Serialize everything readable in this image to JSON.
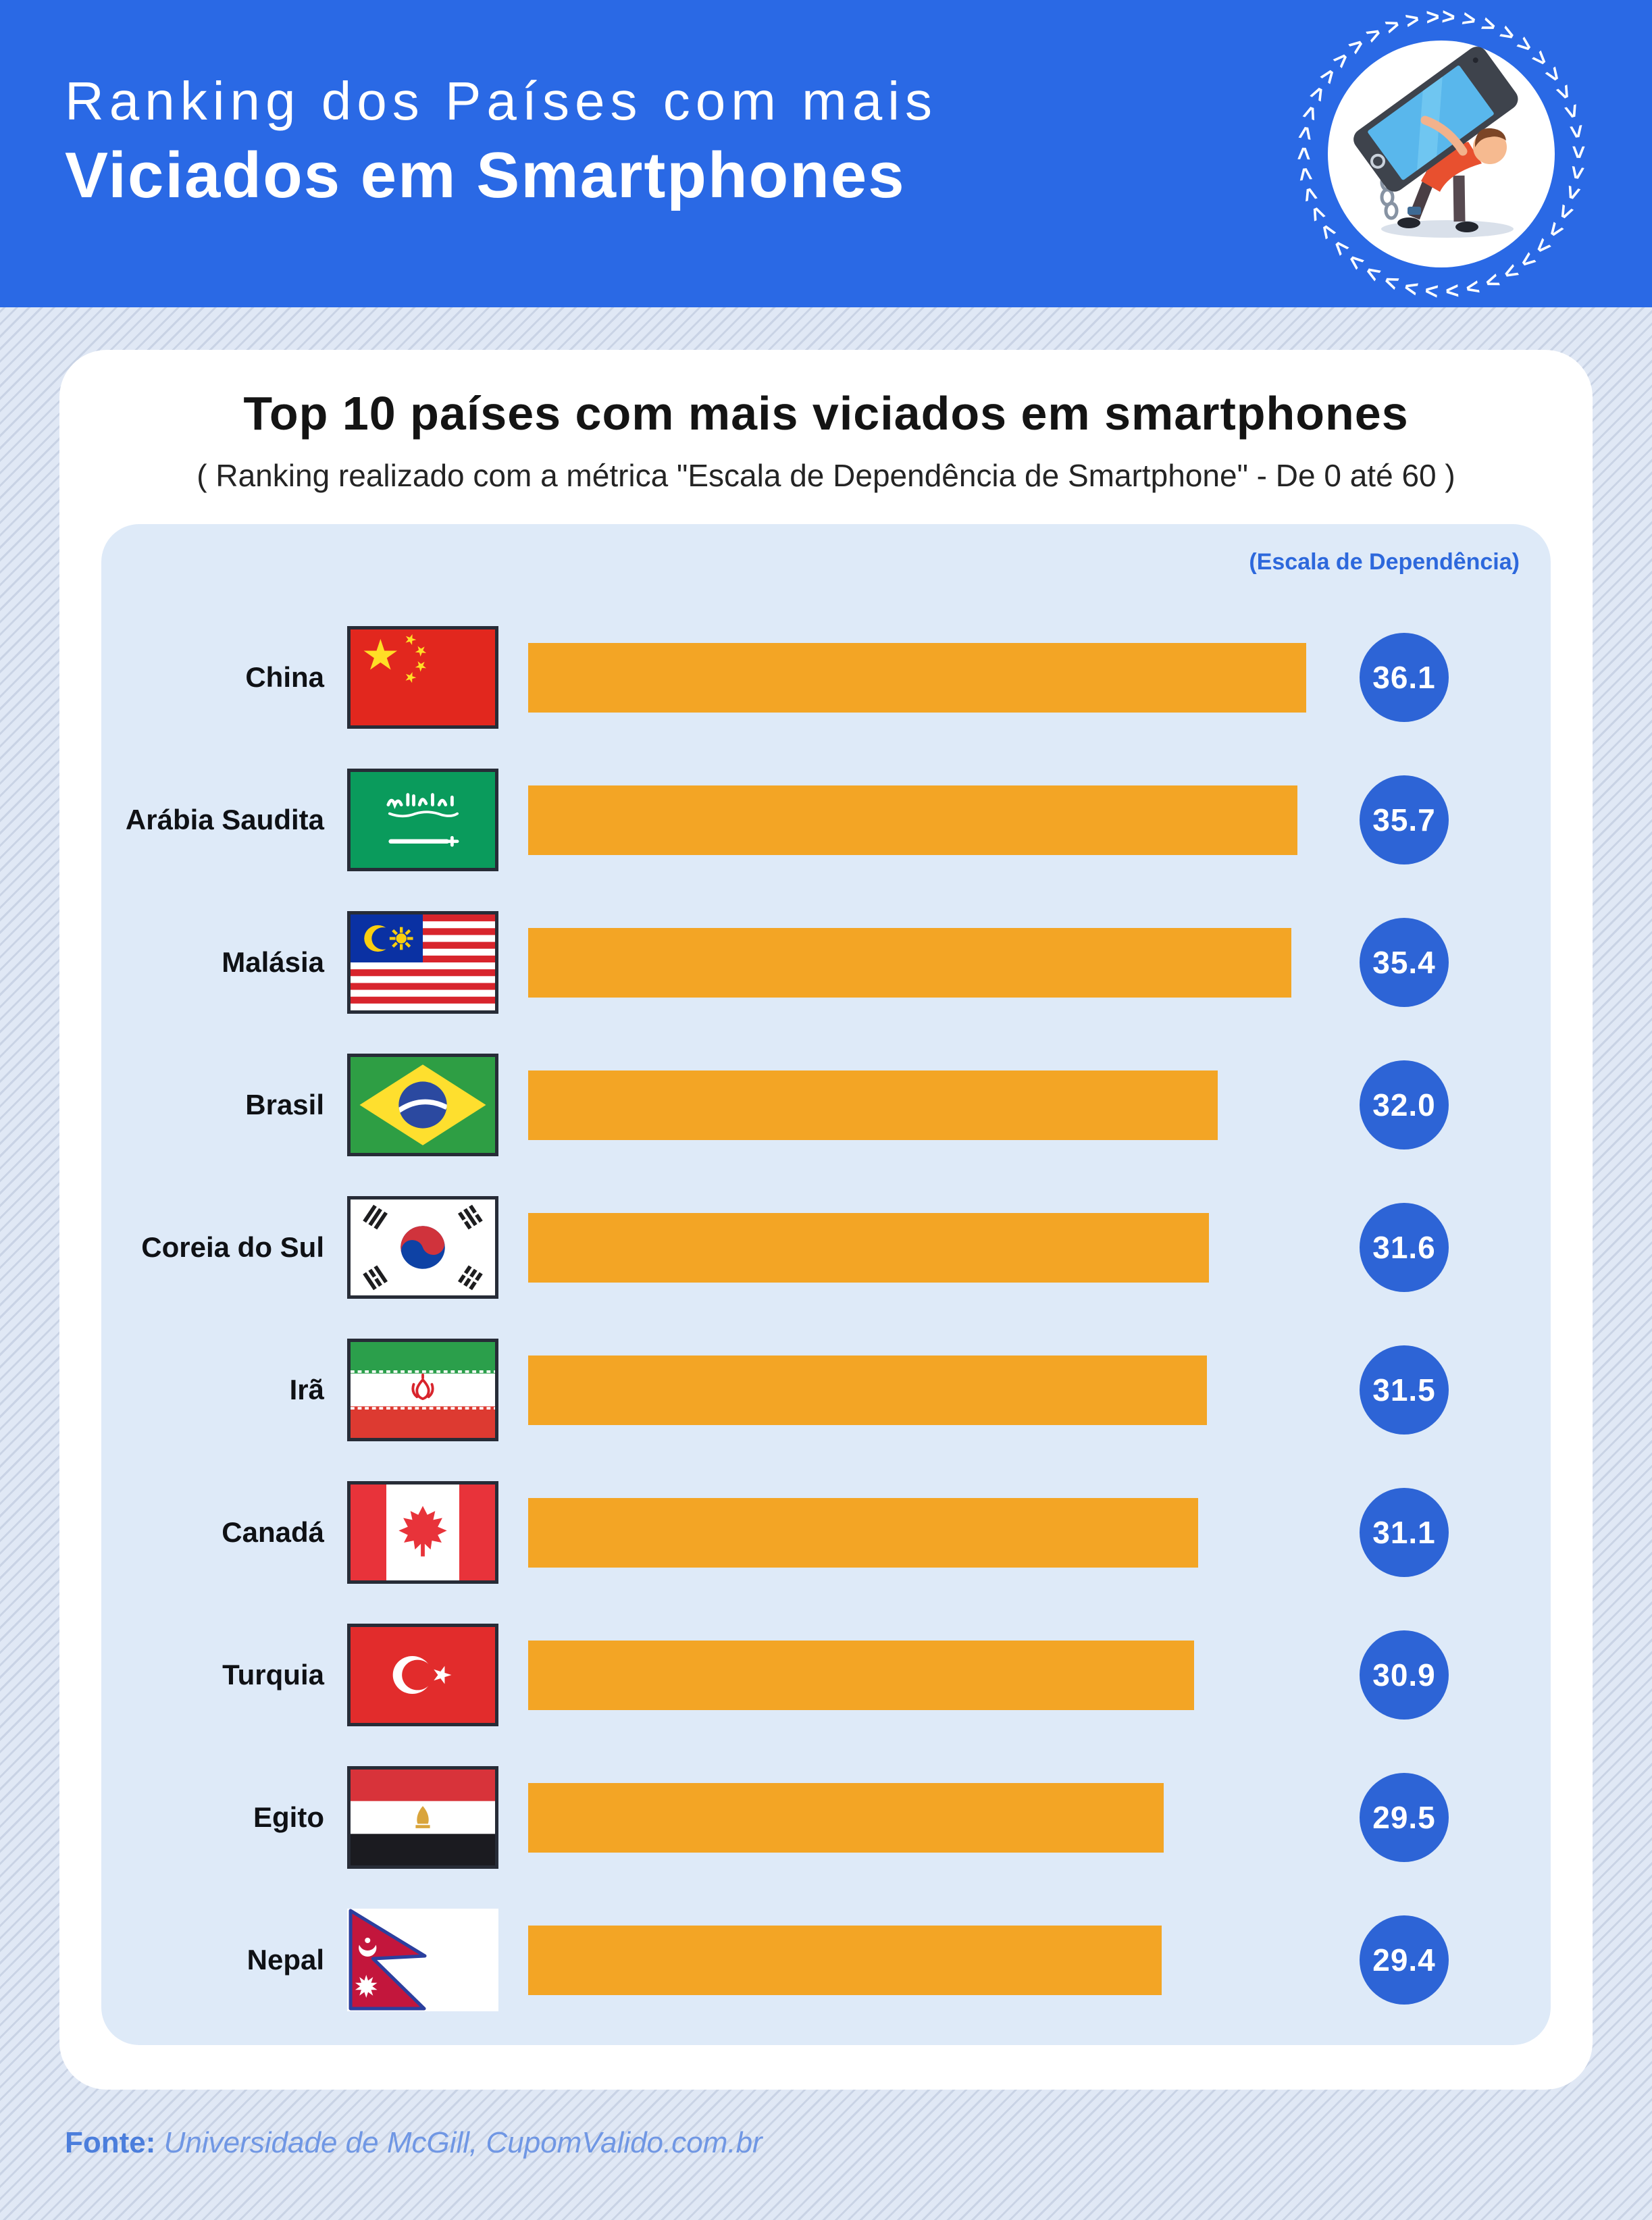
{
  "header": {
    "title_line1": "Ranking dos Países com mais",
    "title_line2": "Viciados em Smartphones"
  },
  "logo": {
    "icon": "smartphone-addiction-illustration"
  },
  "card": {
    "title": "Top 10 países com mais viciados em smartphones",
    "subtitle": "( Ranking realizado com a métrica \"Escala de Dependência de Smartphone\" - De 0 até 60 )"
  },
  "chart": {
    "scale_label": "(Escala de Dependência)",
    "rows": [
      {
        "label": "China",
        "value": "36.1",
        "flag": "china"
      },
      {
        "label": "Arábia Saudita",
        "value": "35.7",
        "flag": "saudi-arabia"
      },
      {
        "label": "Malásia",
        "value": "35.4",
        "flag": "malaysia"
      },
      {
        "label": "Brasil",
        "value": "32.0",
        "flag": "brazil"
      },
      {
        "label": "Coreia do Sul",
        "value": "31.6",
        "flag": "south-korea"
      },
      {
        "label": "Irã",
        "value": "31.5",
        "flag": "iran"
      },
      {
        "label": "Canadá",
        "value": "31.1",
        "flag": "canada"
      },
      {
        "label": "Turquia",
        "value": "30.9",
        "flag": "turkey"
      },
      {
        "label": "Egito",
        "value": "29.5",
        "flag": "egypt"
      },
      {
        "label": "Nepal",
        "value": "29.4",
        "flag": "nepal"
      }
    ]
  },
  "chart_data": {
    "type": "bar",
    "orientation": "horizontal",
    "title": "Top 10 países com mais viciados em smartphones",
    "categories": [
      "China",
      "Arábia Saudita",
      "Malásia",
      "Brasil",
      "Coreia do Sul",
      "Irã",
      "Canadá",
      "Turquia",
      "Egito",
      "Nepal"
    ],
    "values": [
      36.1,
      35.7,
      35.4,
      32.0,
      31.6,
      31.5,
      31.1,
      30.9,
      29.5,
      29.4
    ],
    "value_label": "Escala de Dependência de Smartphone",
    "metric_range": [
      0,
      60
    ],
    "bars_normalized_to_max": 36.1,
    "bar_color": "#F3A525",
    "badge_color": "#2D64D6",
    "grid": false,
    "legend": false
  },
  "footer": {
    "source_label": "Fonte:",
    "source_text": "Universidade de McGill, CupomValido.com.br"
  },
  "colors": {
    "header_bg": "#2A69E5",
    "card_bg": "#FFFFFF",
    "panel_bg": "#DEEAF8",
    "page_bg": "#E0E8F5",
    "page_stripe": "#C9D3E5",
    "bar": "#F3A525",
    "badge": "#2D64D6",
    "scale_label": "#2D68DC",
    "footer_label": "#4B7EDC",
    "footer_text": "#7097E4"
  }
}
